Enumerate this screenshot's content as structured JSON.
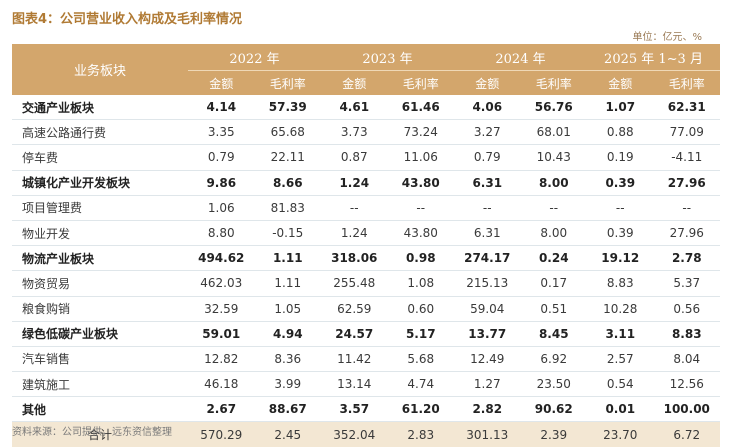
{
  "title": "图表4：公司营业收入构成及毛利率情况",
  "unit": "单位：亿元、%",
  "header": {
    "corner": "业务板块",
    "years": [
      "2022 年",
      "2023 年",
      "2024 年",
      "2025 年 1~3 月"
    ],
    "sub": [
      "金额",
      "毛利率"
    ]
  },
  "rows": [
    {
      "label": "交通产业板块",
      "bold": true,
      "values": [
        "4.14",
        "57.39",
        "4.61",
        "61.46",
        "4.06",
        "56.76",
        "1.07",
        "62.31"
      ]
    },
    {
      "label": "高速公路通行费",
      "bold": false,
      "values": [
        "3.35",
        "65.68",
        "3.73",
        "73.24",
        "3.27",
        "68.01",
        "0.88",
        "77.09"
      ]
    },
    {
      "label": "停车费",
      "bold": false,
      "values": [
        "0.79",
        "22.11",
        "0.87",
        "11.06",
        "0.79",
        "10.43",
        "0.19",
        "-4.11"
      ]
    },
    {
      "label": "城镇化产业开发板块",
      "bold": true,
      "values": [
        "9.86",
        "8.66",
        "1.24",
        "43.80",
        "6.31",
        "8.00",
        "0.39",
        "27.96"
      ]
    },
    {
      "label": "项目管理费",
      "bold": false,
      "values": [
        "1.06",
        "81.83",
        "--",
        "--",
        "--",
        "--",
        "--",
        "--"
      ]
    },
    {
      "label": "物业开发",
      "bold": false,
      "values": [
        "8.80",
        "-0.15",
        "1.24",
        "43.80",
        "6.31",
        "8.00",
        "0.39",
        "27.96"
      ]
    },
    {
      "label": "物流产业板块",
      "bold": true,
      "values": [
        "494.62",
        "1.11",
        "318.06",
        "0.98",
        "274.17",
        "0.24",
        "19.12",
        "2.78"
      ]
    },
    {
      "label": "物资贸易",
      "bold": false,
      "values": [
        "462.03",
        "1.11",
        "255.48",
        "1.08",
        "215.13",
        "0.17",
        "8.83",
        "5.37"
      ]
    },
    {
      "label": "粮食购销",
      "bold": false,
      "values": [
        "32.59",
        "1.05",
        "62.59",
        "0.60",
        "59.04",
        "0.51",
        "10.28",
        "0.56"
      ]
    },
    {
      "label": "绿色低碳产业板块",
      "bold": true,
      "values": [
        "59.01",
        "4.94",
        "24.57",
        "5.17",
        "13.77",
        "8.45",
        "3.11",
        "8.83"
      ]
    },
    {
      "label": "汽车销售",
      "bold": false,
      "values": [
        "12.82",
        "8.36",
        "11.42",
        "5.68",
        "12.49",
        "6.92",
        "2.57",
        "8.04"
      ]
    },
    {
      "label": "建筑施工",
      "bold": false,
      "values": [
        "46.18",
        "3.99",
        "13.14",
        "4.74",
        "1.27",
        "23.50",
        "0.54",
        "12.56"
      ]
    },
    {
      "label": "其他",
      "bold": true,
      "values": [
        "2.67",
        "88.67",
        "3.57",
        "61.20",
        "2.82",
        "90.62",
        "0.01",
        "100.00"
      ]
    }
  ],
  "total": {
    "label": "合计",
    "values": [
      "570.29",
      "2.45",
      "352.04",
      "2.83",
      "301.13",
      "2.39",
      "23.70",
      "6.72"
    ]
  },
  "source": "资料来源：公司提供，远东资信整理",
  "colors": {
    "header_bg": "#d3a66c",
    "title": "#b07a34",
    "total_bg": "#f3e7d3"
  }
}
